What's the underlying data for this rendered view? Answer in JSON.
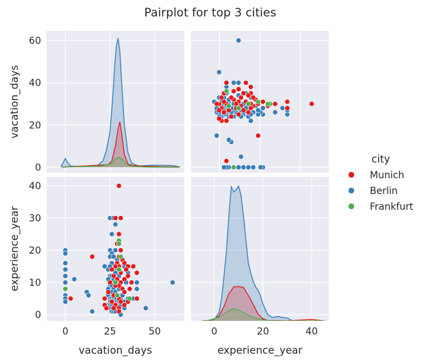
{
  "chart_data": {
    "type": "scatter",
    "title": "Pairplot for top 3 cities",
    "variables": [
      "vacation_days",
      "experience_year"
    ],
    "axes": {
      "vacation_days": {
        "range": [
          -10.5,
          66.5
        ],
        "ticks": [
          0,
          25,
          50
        ],
        "density_range": [
          -2.5,
          64
        ]
      },
      "experience_year": {
        "range": [
          -2.5,
          42.5
        ],
        "ticks": [
          0,
          10,
          20,
          30,
          40
        ]
      },
      "experience_x": {
        "range": [
          -9.5,
          47
        ],
        "ticks": [
          0,
          20,
          40
        ]
      },
      "vacation_y": {
        "ticks": [
          0,
          20,
          40,
          60
        ]
      }
    },
    "grid": true,
    "legend": {
      "title": "city",
      "placement": "right",
      "entries": [
        {
          "name": "Munich",
          "color": "#e41a1c"
        },
        {
          "name": "Berlin",
          "color": "#377eb8"
        },
        {
          "name": "Frankfurt",
          "color": "#4daf4a"
        }
      ]
    },
    "series": [
      {
        "name": "Munich",
        "color": "#e41a1c",
        "points": [
          [
            30,
            40
          ],
          [
            28,
            30
          ],
          [
            31,
            30
          ],
          [
            30,
            25
          ],
          [
            29,
            22
          ],
          [
            31,
            20
          ],
          [
            30,
            18
          ],
          [
            32,
            17
          ],
          [
            29,
            16
          ],
          [
            33,
            16
          ],
          [
            35,
            15
          ],
          [
            30,
            15
          ],
          [
            28,
            15
          ],
          [
            26,
            14
          ],
          [
            34,
            14
          ],
          [
            38,
            15
          ],
          [
            31,
            13
          ],
          [
            27,
            12
          ],
          [
            35,
            12
          ],
          [
            40,
            13
          ],
          [
            33,
            11
          ],
          [
            29,
            11
          ],
          [
            31,
            10
          ],
          [
            25,
            10
          ],
          [
            37,
            10
          ],
          [
            30,
            9
          ],
          [
            28,
            9
          ],
          [
            32,
            8
          ],
          [
            36,
            8
          ],
          [
            24,
            7
          ],
          [
            33,
            7
          ],
          [
            29,
            6
          ],
          [
            27,
            6
          ],
          [
            22,
            5
          ],
          [
            40,
            5
          ],
          [
            30,
            5
          ],
          [
            26,
            4
          ],
          [
            31,
            4
          ],
          [
            35,
            4
          ],
          [
            22,
            3
          ],
          [
            28,
            3
          ],
          [
            33,
            3
          ],
          [
            23,
            2
          ],
          [
            27,
            2
          ],
          [
            30,
            2
          ],
          [
            15,
            18
          ],
          [
            3,
            5
          ],
          [
            30,
            1
          ]
        ],
        "density": [
          [
            -2,
            0.1
          ],
          [
            10,
            0.6
          ],
          [
            24,
            1.2
          ],
          [
            26,
            3
          ],
          [
            28,
            10
          ],
          [
            29.5,
            18
          ],
          [
            30.5,
            21.5
          ],
          [
            31.5,
            16
          ],
          [
            33,
            6
          ],
          [
            35,
            1.5
          ],
          [
            38,
            0.8
          ],
          [
            45,
            0.5
          ],
          [
            55,
            0.3
          ],
          [
            64,
            0.1
          ]
        ]
      },
      {
        "name": "Berlin",
        "color": "#377eb8",
        "points": [
          [
            0,
            20
          ],
          [
            0,
            19
          ],
          [
            0,
            16
          ],
          [
            0,
            14
          ],
          [
            0,
            12
          ],
          [
            0,
            10
          ],
          [
            0,
            8
          ],
          [
            0,
            6
          ],
          [
            0,
            5
          ],
          [
            0,
            4
          ],
          [
            5,
            11
          ],
          [
            12,
            7
          ],
          [
            13,
            6
          ],
          [
            15,
            1
          ],
          [
            22,
            15
          ],
          [
            24,
            14
          ],
          [
            25,
            30
          ],
          [
            26,
            25
          ],
          [
            27,
            30
          ],
          [
            28,
            28
          ],
          [
            25,
            20
          ],
          [
            26,
            19
          ],
          [
            28,
            20
          ],
          [
            25,
            18
          ],
          [
            27,
            18
          ],
          [
            29,
            17
          ],
          [
            26,
            16
          ],
          [
            25,
            15
          ],
          [
            27,
            14
          ],
          [
            29,
            14
          ],
          [
            28,
            13
          ],
          [
            25,
            12
          ],
          [
            26,
            12
          ],
          [
            30,
            12
          ],
          [
            24,
            11
          ],
          [
            27,
            11
          ],
          [
            29,
            10
          ],
          [
            25,
            9
          ],
          [
            26,
            9
          ],
          [
            28,
            9
          ],
          [
            24,
            8
          ],
          [
            27,
            8
          ],
          [
            30,
            8
          ],
          [
            25,
            7
          ],
          [
            26,
            7
          ],
          [
            28,
            7
          ],
          [
            24,
            6
          ],
          [
            29,
            6
          ],
          [
            31,
            6
          ],
          [
            25,
            5
          ],
          [
            26,
            5
          ],
          [
            27,
            5
          ],
          [
            28,
            5
          ],
          [
            30,
            5
          ],
          [
            31,
            5
          ],
          [
            25,
            4
          ],
          [
            26,
            4
          ],
          [
            27,
            4
          ],
          [
            29,
            4
          ],
          [
            30,
            4
          ],
          [
            24,
            3
          ],
          [
            25,
            3
          ],
          [
            26,
            3
          ],
          [
            28,
            3
          ],
          [
            29,
            3
          ],
          [
            31,
            3
          ],
          [
            25,
            2
          ],
          [
            26,
            2
          ],
          [
            27,
            2
          ],
          [
            29,
            2
          ],
          [
            30,
            2
          ],
          [
            26,
            1
          ],
          [
            27,
            1
          ],
          [
            28,
            1
          ],
          [
            30,
            1
          ],
          [
            31,
            0
          ],
          [
            33,
            15
          ],
          [
            35,
            13
          ],
          [
            34,
            10
          ],
          [
            40,
            10
          ],
          [
            40,
            8
          ],
          [
            38,
            5
          ],
          [
            45,
            2
          ],
          [
            60,
            10
          ],
          [
            32,
            6
          ],
          [
            33,
            4
          ],
          [
            35,
            5
          ],
          [
            33,
            2
          ]
        ],
        "density": [
          [
            -2.5,
            0.3
          ],
          [
            -1,
            2.5
          ],
          [
            0,
            4.2
          ],
          [
            1,
            2.5
          ],
          [
            3,
            0.6
          ],
          [
            10,
            0.3
          ],
          [
            18,
            0.8
          ],
          [
            21,
            3
          ],
          [
            23,
            8
          ],
          [
            25,
            17
          ],
          [
            26.5,
            33
          ],
          [
            27.5,
            47
          ],
          [
            28.5,
            57
          ],
          [
            29.5,
            61
          ],
          [
            30.5,
            55
          ],
          [
            31.5,
            40
          ],
          [
            33,
            20
          ],
          [
            35,
            7
          ],
          [
            37,
            2
          ],
          [
            41,
            0.6
          ],
          [
            50,
            1
          ],
          [
            60,
            0.8
          ],
          [
            64,
            0.2
          ]
        ]
      },
      {
        "name": "Frankfurt",
        "color": "#4daf4a",
        "points": [
          [
            0,
            8
          ],
          [
            30,
            23
          ],
          [
            30,
            22
          ],
          [
            31,
            18
          ],
          [
            36,
            5
          ],
          [
            30,
            14
          ],
          [
            28,
            10
          ],
          [
            29,
            6
          ]
        ],
        "density": [
          [
            -2,
            0
          ],
          [
            5,
            0.3
          ],
          [
            20,
            0.6
          ],
          [
            26,
            1.8
          ],
          [
            28,
            3.8
          ],
          [
            30,
            4.8
          ],
          [
            32,
            3.6
          ],
          [
            34,
            1.6
          ],
          [
            37,
            0.5
          ],
          [
            45,
            0.1
          ],
          [
            64,
            0
          ]
        ]
      }
    ],
    "experience_density": [
      {
        "name": "Berlin",
        "color": "#377eb8",
        "points": [
          [
            -5,
            0
          ],
          [
            -2,
            0.05
          ],
          [
            0,
            0.4
          ],
          [
            2,
            2.5
          ],
          [
            3,
            6.5
          ],
          [
            4,
            13
          ],
          [
            5,
            20.5
          ],
          [
            6,
            31
          ],
          [
            7,
            39.5
          ],
          [
            8,
            38
          ],
          [
            9,
            38.6
          ],
          [
            10,
            39.7
          ],
          [
            11,
            37
          ],
          [
            12,
            31
          ],
          [
            13,
            24
          ],
          [
            14,
            17
          ],
          [
            15,
            14
          ],
          [
            16,
            11.7
          ],
          [
            17,
            10
          ],
          [
            18,
            9
          ],
          [
            19,
            7.3
          ],
          [
            20,
            5
          ],
          [
            21,
            3.3
          ],
          [
            22,
            1.8
          ],
          [
            24,
            1
          ],
          [
            26,
            1.3
          ],
          [
            28,
            1
          ],
          [
            30,
            0.8
          ],
          [
            32,
            0.1
          ],
          [
            35,
            0
          ]
        ]
      },
      {
        "name": "Munich",
        "color": "#e41a1c",
        "points": [
          [
            -5,
            0
          ],
          [
            -2,
            0.1
          ],
          [
            0,
            0.6
          ],
          [
            2,
            1.5
          ],
          [
            4,
            4.2
          ],
          [
            6,
            8
          ],
          [
            8,
            10
          ],
          [
            10,
            10.1
          ],
          [
            12,
            9.8
          ],
          [
            14,
            7.5
          ],
          [
            16,
            4.8
          ],
          [
            18,
            2
          ],
          [
            20,
            0.6
          ],
          [
            22,
            0.1
          ],
          [
            25,
            0.1
          ],
          [
            30,
            0
          ],
          [
            40,
            0.4
          ],
          [
            45,
            0
          ]
        ]
      },
      {
        "name": "Frankfurt",
        "color": "#4daf4a",
        "points": [
          [
            -5,
            0
          ],
          [
            -3,
            0.05
          ],
          [
            0,
            0.6
          ],
          [
            3,
            1.5
          ],
          [
            6,
            3
          ],
          [
            8,
            3.6
          ],
          [
            10,
            3.2
          ],
          [
            12,
            2.4
          ],
          [
            14,
            1.6
          ],
          [
            17,
            0.8
          ],
          [
            20,
            0.3
          ],
          [
            23,
            0.05
          ],
          [
            26,
            0
          ],
          [
            45,
            0
          ]
        ]
      }
    ]
  }
}
